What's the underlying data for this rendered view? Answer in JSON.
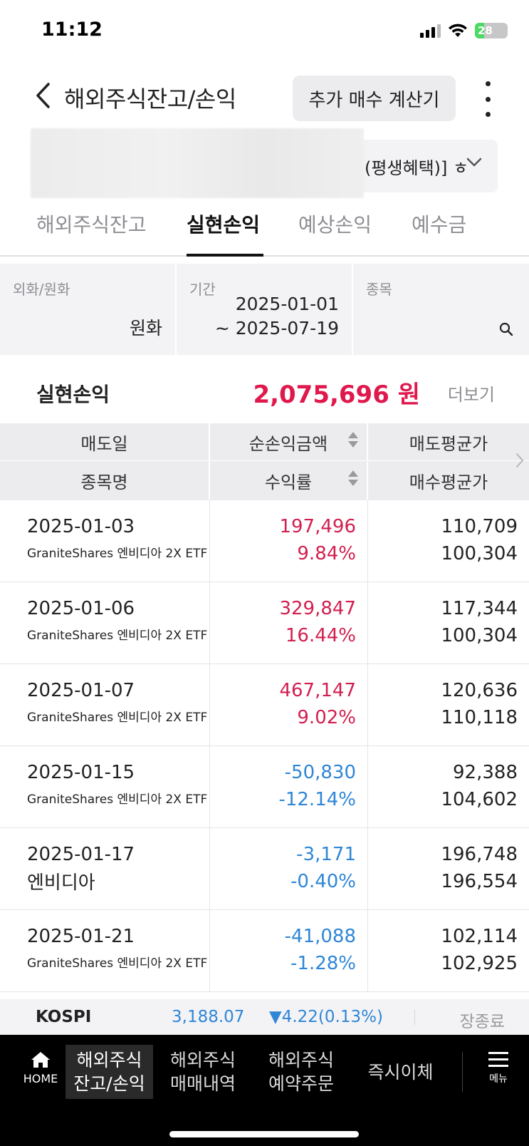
{
  "status": {
    "time": "11:12",
    "battery": "28",
    "battery_level": 0.28
  },
  "header": {
    "title": "해외주식잔고/손익",
    "calc_button": "추가 매수 계산기"
  },
  "account": {
    "label": "(평생혜택)] ㅎ"
  },
  "tabs": [
    {
      "label": "해외주식잔고"
    },
    {
      "label": "실현손익"
    },
    {
      "label": "예상손익"
    },
    {
      "label": "예수금"
    }
  ],
  "filters": {
    "currency_label": "외화/원화",
    "currency_value": "원화",
    "period_label": "기간",
    "period_start": "2025-01-01",
    "period_end": "~ 2025-07-19",
    "stock_label": "종목"
  },
  "summary": {
    "label": "실현손익",
    "value": "2,075,696 원",
    "more": "더보기"
  },
  "table": {
    "headers": {
      "sell_date": "매도일",
      "net_profit": "순손익금액",
      "sell_avg": "매도평균가",
      "stock_name": "종목명",
      "return_rate": "수익률",
      "buy_avg": "매수평균가"
    },
    "rows": [
      {
        "date": "2025-01-03",
        "name": "GraniteShares 엔비디아 2X ETF",
        "profit": "197,496",
        "rate": "9.84%",
        "sell_avg": "110,709",
        "buy_avg": "100,304"
      },
      {
        "date": "2025-01-06",
        "name": "GraniteShares 엔비디아 2X ETF",
        "profit": "329,847",
        "rate": "16.44%",
        "sell_avg": "117,344",
        "buy_avg": "100,304"
      },
      {
        "date": "2025-01-07",
        "name": "GraniteShares 엔비디아 2X ETF",
        "profit": "467,147",
        "rate": "9.02%",
        "sell_avg": "120,636",
        "buy_avg": "110,118"
      },
      {
        "date": "2025-01-15",
        "name": "GraniteShares 엔비디아 2X ETF",
        "profit": "-50,830",
        "rate": "-12.14%",
        "sell_avg": "92,388",
        "buy_avg": "104,602"
      },
      {
        "date": "2025-01-17",
        "name": "엔비디아",
        "profit": "-3,171",
        "rate": "-0.40%",
        "sell_avg": "196,748",
        "buy_avg": "196,554"
      },
      {
        "date": "2025-01-21",
        "name": "GraniteShares 엔비디아 2X ETF",
        "profit": "-41,088",
        "rate": "-1.28%",
        "sell_avg": "102,114",
        "buy_avg": "102,925"
      }
    ]
  },
  "ticker": {
    "name": "KOSPI",
    "value": "3,188.07",
    "change": "▼4.22(0.13%)",
    "status": "장종료"
  },
  "nav": {
    "home": "HOME",
    "items": [
      {
        "line1": "해외주식",
        "line2": "잔고/손익"
      },
      {
        "line1": "해외주식",
        "line2": "매매내역"
      },
      {
        "line1": "해외주식",
        "line2": "예약주문"
      },
      {
        "line1": "즉시이체",
        "line2": ""
      }
    ],
    "menu": "메뉴"
  },
  "colors": {
    "positive": "#d21f4f",
    "negative": "#2f86d6",
    "summary": "#e0194d"
  }
}
